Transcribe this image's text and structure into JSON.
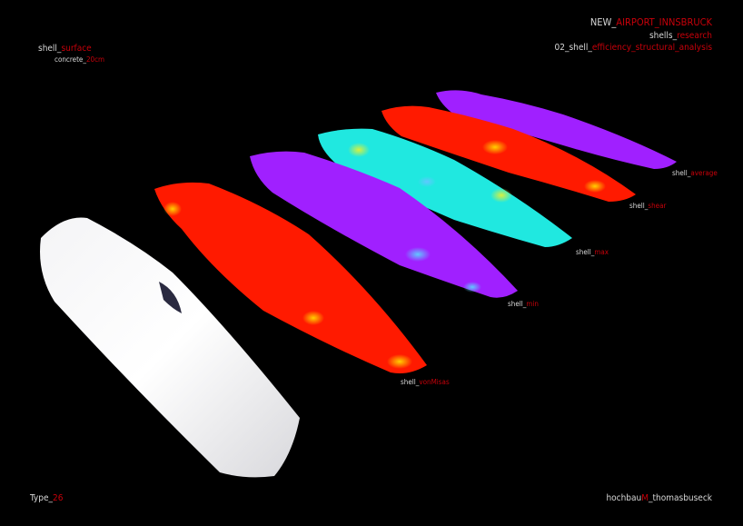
{
  "header": {
    "title": {
      "prefix": "NEW_",
      "accent": "AIRPORT_INNSBRUCK"
    },
    "subtitle": {
      "prefix": "shells_",
      "accent": "research"
    },
    "subject": {
      "prefix": "02_shell_",
      "accent": "efficiency_structural_analysis"
    }
  },
  "material": {
    "line1": {
      "prefix": "shell_",
      "accent": "surface"
    },
    "line2": {
      "prefix": "concrete_",
      "accent": "20cm"
    }
  },
  "shells": [
    {
      "prefix": "shell_",
      "accent": "average",
      "color": "#a020ff"
    },
    {
      "prefix": "shell_",
      "accent": "shear",
      "color": "#ff1a00"
    },
    {
      "prefix": "shell_",
      "accent": "max",
      "color": "#20e8e0"
    },
    {
      "prefix": "shell_",
      "accent": "min",
      "color": "#a020ff"
    },
    {
      "prefix": "shell_",
      "accent": "vonMisas",
      "color": "#ff1a00"
    },
    {
      "color": "#ffffff"
    }
  ],
  "footer": {
    "type": {
      "prefix": "Type_",
      "accent": "26"
    },
    "credit": {
      "prefix": "hochbau",
      "accent": "M",
      "suffix": "_thomasbuseck"
    }
  },
  "colors": {
    "background": "#000000",
    "accent": "#c8000a",
    "text": "#d8d8d8"
  }
}
